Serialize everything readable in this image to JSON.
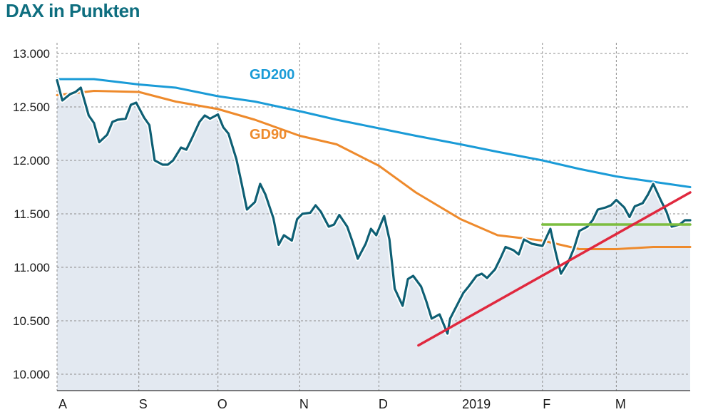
{
  "title": "DAX in Punkten",
  "chart_data": {
    "type": "line",
    "title": "DAX in Punkten",
    "xlabel": "",
    "ylabel": "",
    "ylim": [
      10000,
      13000
    ],
    "y_ticks": [
      10000,
      10500,
      11000,
      11500,
      12000,
      12500,
      13000
    ],
    "y_tick_labels": [
      "10.000",
      "10.500",
      "11.000",
      "11.500",
      "12.000",
      "12.500",
      "13.000"
    ],
    "x_ticks": [
      "A",
      "S",
      "O",
      "N",
      "D",
      "2019",
      "F",
      "M"
    ],
    "x_tick_dates": [
      "2018-08-01",
      "2018-09-01",
      "2018-10-01",
      "2018-11-01",
      "2018-12-01",
      "2019-01-01",
      "2019-02-01",
      "2019-03-01"
    ],
    "xlim": [
      "2018-08-01",
      "2019-03-29"
    ],
    "grid": true,
    "colors": {
      "dax": "#0e5f74",
      "area_fill": "#e3e9f1",
      "gd200": "#1a9bd7",
      "gd90": "#ee8a2c",
      "trend": "#e0283e",
      "resistance": "#7cbd3f",
      "title": "#0e6e7f"
    },
    "series": [
      {
        "name": "",
        "key": "dax",
        "x": [
          "2018-08-01",
          "2018-08-03",
          "2018-08-06",
          "2018-08-08",
          "2018-08-10",
          "2018-08-13",
          "2018-08-15",
          "2018-08-17",
          "2018-08-20",
          "2018-08-22",
          "2018-08-24",
          "2018-08-27",
          "2018-08-29",
          "2018-08-31",
          "2018-09-03",
          "2018-09-05",
          "2018-09-07",
          "2018-09-10",
          "2018-09-12",
          "2018-09-14",
          "2018-09-17",
          "2018-09-19",
          "2018-09-21",
          "2018-09-24",
          "2018-09-26",
          "2018-09-28",
          "2018-10-01",
          "2018-10-03",
          "2018-10-05",
          "2018-10-08",
          "2018-10-10",
          "2018-10-12",
          "2018-10-15",
          "2018-10-17",
          "2018-10-19",
          "2018-10-22",
          "2018-10-24",
          "2018-10-26",
          "2018-10-29",
          "2018-10-31",
          "2018-11-02",
          "2018-11-05",
          "2018-11-07",
          "2018-11-09",
          "2018-11-12",
          "2018-11-14",
          "2018-11-16",
          "2018-11-19",
          "2018-11-21",
          "2018-11-23",
          "2018-11-26",
          "2018-11-28",
          "2018-11-30",
          "2018-12-03",
          "2018-12-05",
          "2018-12-07",
          "2018-12-10",
          "2018-12-12",
          "2018-12-14",
          "2018-12-17",
          "2018-12-19",
          "2018-12-21",
          "2018-12-24",
          "2018-12-27",
          "2018-12-28",
          "2019-01-02",
          "2019-01-04",
          "2019-01-07",
          "2019-01-09",
          "2019-01-11",
          "2019-01-14",
          "2019-01-16",
          "2019-01-18",
          "2019-01-21",
          "2019-01-23",
          "2019-01-25",
          "2019-01-28",
          "2019-01-30",
          "2019-02-01",
          "2019-02-04",
          "2019-02-06",
          "2019-02-08",
          "2019-02-11",
          "2019-02-13",
          "2019-02-15",
          "2019-02-18",
          "2019-02-20",
          "2019-02-22",
          "2019-02-25",
          "2019-02-27",
          "2019-03-01",
          "2019-03-04",
          "2019-03-06",
          "2019-03-08",
          "2019-03-11",
          "2019-03-13",
          "2019-03-15",
          "2019-03-18",
          "2019-03-20",
          "2019-03-22",
          "2019-03-25",
          "2019-03-27",
          "2019-03-29"
        ],
        "y": [
          12750,
          12560,
          12620,
          12640,
          12680,
          12420,
          12350,
          12170,
          12240,
          12360,
          12380,
          12390,
          12520,
          12540,
          12400,
          12330,
          12000,
          11960,
          11960,
          12000,
          12120,
          12100,
          12200,
          12360,
          12420,
          12390,
          12430,
          12310,
          12250,
          12010,
          11780,
          11540,
          11610,
          11780,
          11680,
          11460,
          11210,
          11300,
          11250,
          11450,
          11500,
          11510,
          11580,
          11520,
          11380,
          11400,
          11490,
          11380,
          11240,
          11080,
          11220,
          11360,
          11300,
          11480,
          11260,
          10800,
          10640,
          10890,
          10920,
          10820,
          10680,
          10520,
          10560,
          10380,
          10520,
          10760,
          10820,
          10920,
          10940,
          10900,
          10980,
          11080,
          11190,
          11160,
          11120,
          11260,
          11220,
          11210,
          11200,
          11360,
          11140,
          10940,
          11060,
          11180,
          11340,
          11380,
          11440,
          11540,
          11560,
          11580,
          11630,
          11560,
          11470,
          11570,
          11600,
          11680,
          11780,
          11620,
          11520,
          11380,
          11400,
          11440,
          11440
        ]
      },
      {
        "name": "GD200",
        "key": "gd200",
        "x": [
          "2018-08-01",
          "2018-08-15",
          "2018-09-01",
          "2018-09-15",
          "2018-10-01",
          "2018-10-15",
          "2018-11-01",
          "2018-11-15",
          "2018-12-01",
          "2018-12-15",
          "2019-01-01",
          "2019-01-15",
          "2019-02-01",
          "2019-02-15",
          "2019-03-01",
          "2019-03-15",
          "2019-03-29"
        ],
        "y": [
          12760,
          12760,
          12710,
          12680,
          12600,
          12550,
          12460,
          12380,
          12300,
          12230,
          12150,
          12080,
          12000,
          11920,
          11850,
          11800,
          11750
        ]
      },
      {
        "name": "GD90",
        "key": "gd90",
        "x": [
          "2018-08-01",
          "2018-08-15",
          "2018-09-01",
          "2018-09-15",
          "2018-10-01",
          "2018-10-15",
          "2018-11-01",
          "2018-11-15",
          "2018-12-01",
          "2018-12-15",
          "2019-01-01",
          "2019-01-15",
          "2019-02-01",
          "2019-02-15",
          "2019-03-01",
          "2019-03-15",
          "2019-03-29"
        ],
        "y": [
          12610,
          12650,
          12640,
          12550,
          12480,
          12380,
          12230,
          12150,
          11950,
          11700,
          11450,
          11300,
          11250,
          11170,
          11170,
          11190,
          11190
        ]
      },
      {
        "name": "",
        "key": "trend",
        "x": [
          "2018-12-16",
          "2019-03-29"
        ],
        "y": [
          10270,
          11700
        ]
      },
      {
        "name": "",
        "key": "resistance",
        "x": [
          "2019-02-01",
          "2019-03-29"
        ],
        "y": [
          11400,
          11400
        ]
      }
    ]
  }
}
